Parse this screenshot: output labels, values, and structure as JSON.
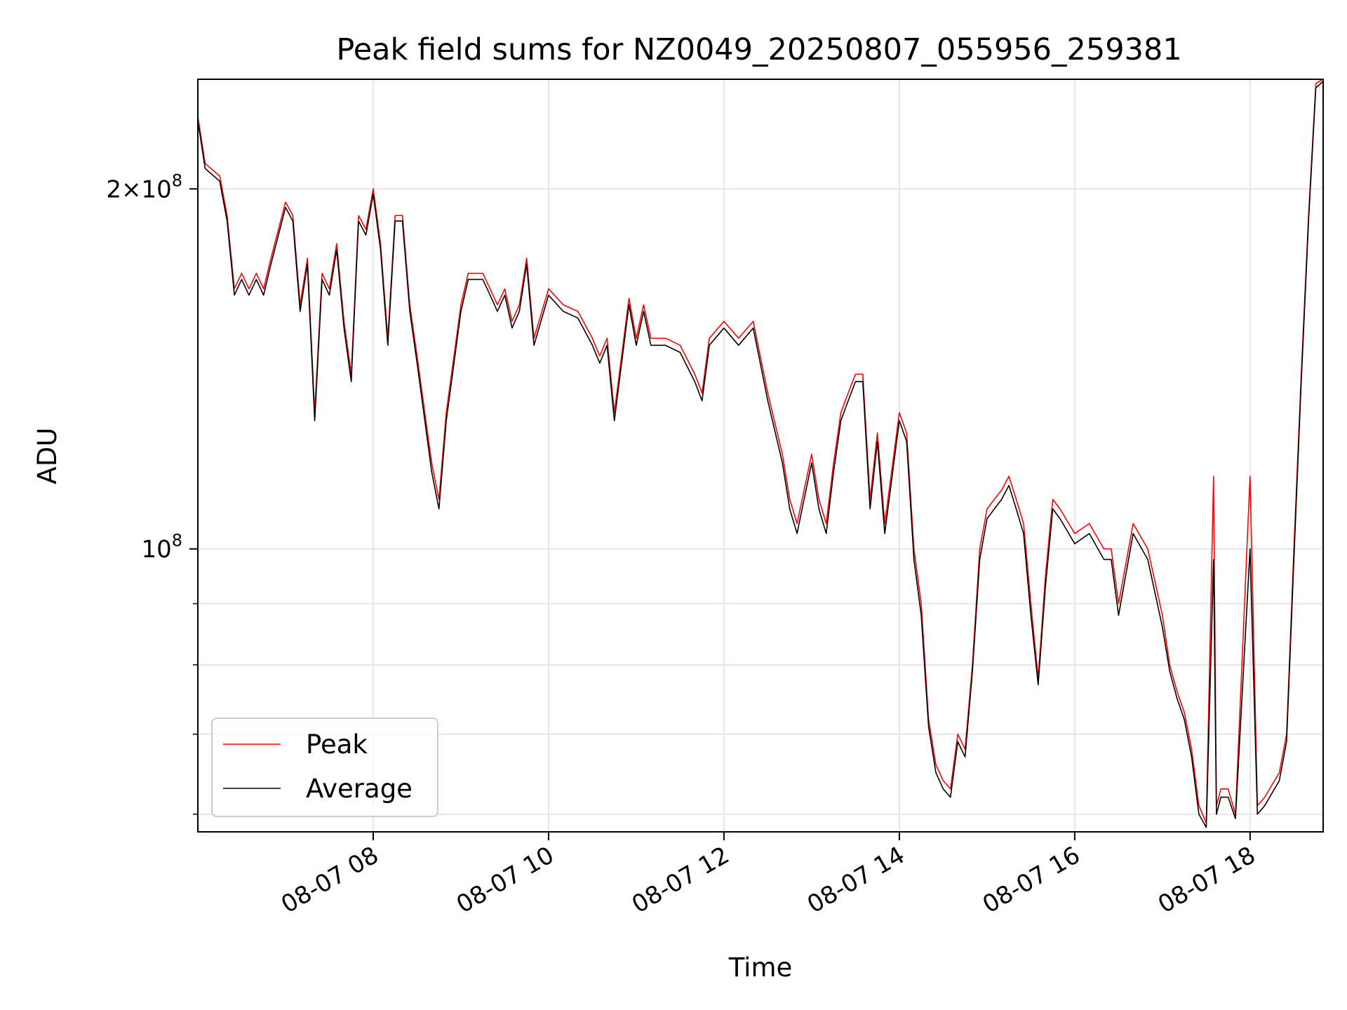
{
  "chart_data": {
    "type": "line",
    "title": "Peak field sums for NZ0049_20250807_055956_259381",
    "xlabel": "Time",
    "ylabel": "ADU",
    "yscale": "log",
    "x_axis_type": "datetime",
    "xlim": [
      "2025-08-07 06:00",
      "2025-08-07 18:50"
    ],
    "ylim": [
      58000000,
      247000000
    ],
    "grid": true,
    "legend_position": "lower-left",
    "x_ticks": [
      {
        "t": "2025-08-07 08:00",
        "label": "08-07 08"
      },
      {
        "t": "2025-08-07 10:00",
        "label": "08-07 10"
      },
      {
        "t": "2025-08-07 12:00",
        "label": "08-07 12"
      },
      {
        "t": "2025-08-07 14:00",
        "label": "08-07 14"
      },
      {
        "t": "2025-08-07 16:00",
        "label": "08-07 16"
      },
      {
        "t": "2025-08-07 18:00",
        "label": "08-07 18"
      }
    ],
    "y_ticks_major": [
      {
        "value": 100000000,
        "base": "10",
        "exp": "8"
      },
      {
        "value": 200000000,
        "mant": "2",
        "base": "10",
        "exp": "8"
      }
    ],
    "y_ticks_minor": [
      60000000,
      70000000,
      80000000,
      90000000
    ],
    "x": [
      "06:00",
      "06:05",
      "06:15",
      "06:20",
      "06:25",
      "06:30",
      "06:35",
      "06:40",
      "06:45",
      "06:50",
      "07:00",
      "07:05",
      "07:10",
      "07:15",
      "07:20",
      "07:25",
      "07:30",
      "07:35",
      "07:40",
      "07:45",
      "07:50",
      "07:55",
      "08:00",
      "08:05",
      "08:10",
      "08:15",
      "08:20",
      "08:25",
      "08:30",
      "08:40",
      "08:45",
      "08:50",
      "09:00",
      "09:05",
      "09:10",
      "09:15",
      "09:20",
      "09:25",
      "09:30",
      "09:35",
      "09:40",
      "09:45",
      "09:50",
      "10:00",
      "10:10",
      "10:20",
      "10:30",
      "10:35",
      "10:40",
      "10:45",
      "10:55",
      "11:00",
      "11:05",
      "11:10",
      "11:20",
      "11:30",
      "11:40",
      "11:45",
      "11:50",
      "12:00",
      "12:10",
      "12:20",
      "12:30",
      "12:40",
      "12:45",
      "12:50",
      "13:00",
      "13:05",
      "13:10",
      "13:15",
      "13:20",
      "13:25",
      "13:30",
      "13:35",
      "13:40",
      "13:45",
      "13:50",
      "14:00",
      "14:05",
      "14:10",
      "14:15",
      "14:20",
      "14:25",
      "14:30",
      "14:35",
      "14:40",
      "14:45",
      "14:50",
      "14:55",
      "15:00",
      "15:05",
      "15:10",
      "15:15",
      "15:20",
      "15:25",
      "15:30",
      "15:35",
      "15:40",
      "15:45",
      "15:50",
      "16:00",
      "16:10",
      "16:20",
      "16:25",
      "16:30",
      "16:40",
      "16:50",
      "17:00",
      "17:05",
      "17:10",
      "17:15",
      "17:20",
      "17:25",
      "17:30",
      "17:35",
      "17:37",
      "17:40",
      "17:45",
      "17:50",
      "18:00",
      "18:05",
      "18:10",
      "18:20",
      "18:25",
      "18:30",
      "18:35",
      "18:40",
      "18:45",
      "18:50"
    ],
    "series": [
      {
        "name": "Peak",
        "color": "#ff0000",
        "values": [
          230000000,
          210000000,
          205000000,
          190000000,
          165000000,
          170000000,
          165000000,
          170000000,
          165000000,
          175000000,
          195000000,
          190000000,
          160000000,
          175000000,
          130000000,
          170000000,
          165000000,
          180000000,
          155000000,
          140000000,
          190000000,
          185000000,
          200000000,
          180000000,
          150000000,
          190000000,
          190000000,
          160000000,
          145000000,
          118000000,
          110000000,
          130000000,
          160000000,
          170000000,
          170000000,
          170000000,
          165000000,
          160000000,
          165000000,
          155000000,
          160000000,
          175000000,
          150000000,
          165000000,
          160000000,
          158000000,
          150000000,
          145000000,
          150000000,
          130000000,
          162000000,
          150000000,
          160000000,
          150000000,
          150000000,
          148000000,
          140000000,
          135000000,
          150000000,
          155000000,
          150000000,
          155000000,
          135000000,
          120000000,
          110000000,
          105000000,
          120000000,
          110000000,
          105000000,
          118000000,
          130000000,
          135000000,
          140000000,
          140000000,
          110000000,
          125000000,
          105000000,
          130000000,
          125000000,
          100000000,
          90000000,
          72000000,
          66000000,
          64000000,
          63000000,
          70000000,
          68000000,
          80000000,
          100000000,
          108000000,
          110000000,
          112000000,
          115000000,
          110000000,
          105000000,
          90000000,
          78000000,
          95000000,
          110000000,
          108000000,
          103000000,
          105000000,
          100000000,
          100000000,
          90000000,
          105000000,
          100000000,
          88000000,
          80000000,
          76000000,
          73000000,
          68000000,
          61000000,
          59000000,
          115000000,
          61000000,
          63000000,
          63000000,
          60000000,
          115000000,
          61000000,
          62000000,
          65000000,
          70000000,
          100000000,
          140000000,
          190000000,
          245000000,
          247000000
        ]
      },
      {
        "name": "Average",
        "color": "#000000",
        "values": [
          228000000,
          208000000,
          203000000,
          188000000,
          163000000,
          168000000,
          163000000,
          168000000,
          163000000,
          173000000,
          193000000,
          188000000,
          158000000,
          173000000,
          128000000,
          168000000,
          163000000,
          178000000,
          153000000,
          138000000,
          188000000,
          183000000,
          198000000,
          178000000,
          148000000,
          188000000,
          188000000,
          158000000,
          143000000,
          116000000,
          108000000,
          128000000,
          158000000,
          168000000,
          168000000,
          168000000,
          163000000,
          158000000,
          163000000,
          153000000,
          158000000,
          173000000,
          148000000,
          163000000,
          158000000,
          156000000,
          148000000,
          143000000,
          148000000,
          128000000,
          160000000,
          148000000,
          158000000,
          148000000,
          148000000,
          146000000,
          138000000,
          133000000,
          148000000,
          153000000,
          148000000,
          153000000,
          133000000,
          118000000,
          108000000,
          103000000,
          118000000,
          108000000,
          103000000,
          116000000,
          128000000,
          133000000,
          138000000,
          138000000,
          108000000,
          123000000,
          103000000,
          128000000,
          123000000,
          98000000,
          88000000,
          71000000,
          65000000,
          63000000,
          62000000,
          69000000,
          67000000,
          79000000,
          98000000,
          106000000,
          108000000,
          110000000,
          113000000,
          108000000,
          103000000,
          88000000,
          77000000,
          93000000,
          108000000,
          106000000,
          101000000,
          103000000,
          98000000,
          98000000,
          88000000,
          103000000,
          98000000,
          86000000,
          79000000,
          75000000,
          72000000,
          67000000,
          60000000,
          58500000,
          98000000,
          60000000,
          62000000,
          62000000,
          59500000,
          100000000,
          60000000,
          61000000,
          64000000,
          69000000,
          98000000,
          138000000,
          188000000,
          243000000,
          246000000
        ]
      }
    ]
  }
}
